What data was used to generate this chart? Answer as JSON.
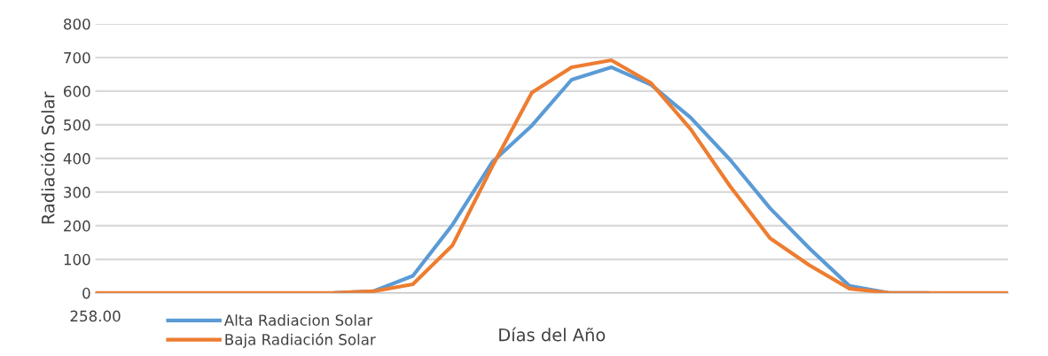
{
  "chart_data": {
    "type": "line",
    "xlabel": "Días del Año",
    "ylabel": "Radiación Solar",
    "categories": [
      "258.00",
      null,
      null,
      null,
      null,
      null,
      null,
      null,
      null,
      null,
      null,
      null,
      null,
      null,
      null,
      null,
      null,
      null,
      null,
      null,
      null,
      null,
      null,
      null
    ],
    "series": [
      {
        "name": "Alta Radiacion Solar",
        "color": "#5b9bd5",
        "values": [
          null,
          null,
          null,
          null,
          null,
          null,
          0,
          5,
          51,
          203,
          389,
          498,
          634,
          671,
          619,
          521,
          395,
          252,
          132,
          21,
          0,
          0,
          null,
          null
        ]
      },
      {
        "name": "Baja Radiación Solar",
        "color": "#ed7d31",
        "values": [
          0,
          0,
          0,
          0,
          0,
          0,
          0,
          5,
          26,
          142,
          376,
          596,
          671,
          692,
          624,
          487,
          316,
          163,
          82,
          13,
          0,
          0,
          0,
          0
        ]
      }
    ],
    "ylim": [
      0,
      800
    ],
    "yticks": [
      0,
      100,
      200,
      300,
      400,
      500,
      600,
      700,
      800
    ],
    "grid": "y",
    "legend": "bottom left",
    "marker": "none",
    "line_style": "solid"
  }
}
